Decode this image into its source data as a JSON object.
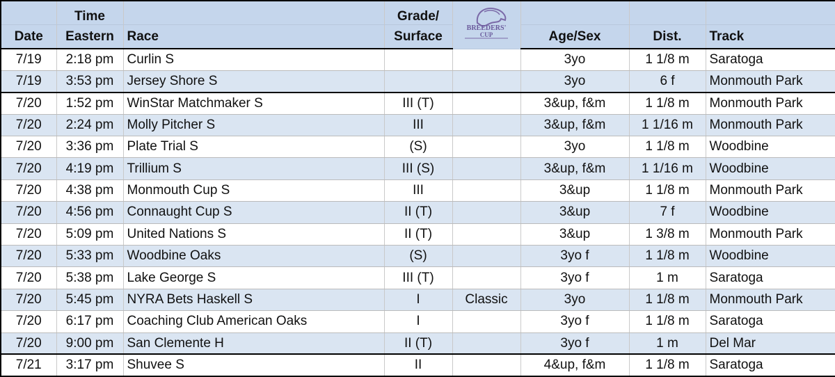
{
  "table": {
    "header": {
      "rows": [
        [
          null,
          "Time",
          null,
          "Grade/",
          null,
          null,
          null,
          null
        ],
        [
          "Date",
          "Eastern",
          "Race",
          "Surface",
          null,
          "Age/Sex",
          "Dist.",
          "Track"
        ]
      ],
      "logo": [
        "BREEDERS'",
        "CUP"
      ]
    },
    "rows": [
      [
        "7/19",
        "2:18 pm",
        "Curlin S",
        null,
        null,
        "3yo",
        "1 1/8 m",
        "Saratoga"
      ],
      [
        "7/19",
        "3:53 pm",
        "Jersey Shore S",
        null,
        null,
        "3yo",
        "6 f",
        "Monmouth Park"
      ],
      [
        "7/20",
        "1:52 pm",
        "WinStar Matchmaker S",
        "III (T)",
        null,
        "3&up, f&m",
        "1 1/8 m",
        "Monmouth Park"
      ],
      [
        "7/20",
        "2:24 pm",
        "Molly Pitcher S",
        "III",
        null,
        "3&up, f&m",
        "1 1/16 m",
        "Monmouth Park"
      ],
      [
        "7/20",
        "3:36 pm",
        "Plate Trial S",
        "(S)",
        null,
        "3yo",
        "1 1/8 m",
        "Woodbine"
      ],
      [
        "7/20",
        "4:19 pm",
        "Trillium S",
        "III (S)",
        null,
        "3&up, f&m",
        "1 1/16 m",
        "Woodbine"
      ],
      [
        "7/20",
        "4:38 pm",
        "Monmouth Cup S",
        "III",
        null,
        "3&up",
        "1 1/8 m",
        "Monmouth Park"
      ],
      [
        "7/20",
        "4:56 pm",
        "Connaught Cup S",
        "II (T)",
        null,
        "3&up",
        "7 f",
        "Woodbine"
      ],
      [
        "7/20",
        "5:09 pm",
        "United Nations S",
        "II (T)",
        null,
        "3&up",
        "1 3/8 m",
        "Monmouth Park"
      ],
      [
        "7/20",
        "5:33 pm",
        "Woodbine Oaks",
        "(S)",
        null,
        "3yo f",
        "1 1/8 m",
        "Woodbine"
      ],
      [
        "7/20",
        "5:38 pm",
        "Lake George S",
        "III (T)",
        null,
        "3yo f",
        "1 m",
        "Saratoga"
      ],
      [
        "7/20",
        "5:45 pm",
        "NYRA Bets Haskell S",
        "I",
        "Classic",
        "3yo",
        "1 1/8 m",
        "Monmouth Park"
      ],
      [
        "7/20",
        "6:17 pm",
        "Coaching Club American Oaks",
        "I",
        null,
        "3yo f",
        "1 1/8 m",
        "Saratoga"
      ],
      [
        "7/20",
        "9:00 pm",
        "San Clemente H",
        "II (T)",
        null,
        "3yo f",
        "1 m",
        "Del Mar"
      ],
      [
        "7/21",
        "3:17 pm",
        "Shuvee S",
        "II",
        null,
        "4&up, f&m",
        "1 1/8 m",
        "Saratoga"
      ]
    ]
  }
}
